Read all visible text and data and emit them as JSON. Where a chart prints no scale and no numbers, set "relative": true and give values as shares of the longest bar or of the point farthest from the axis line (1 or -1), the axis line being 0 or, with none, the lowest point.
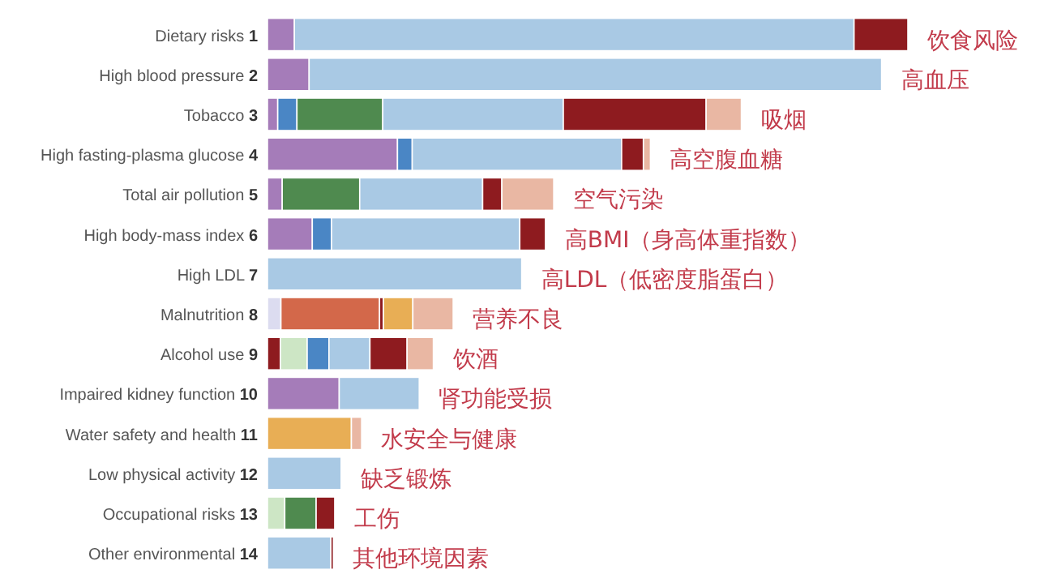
{
  "chart_data": {
    "type": "bar",
    "orientation": "horizontal",
    "stacked": true,
    "relative": true,
    "categories": [
      "Dietary risks 1",
      "High blood pressure 2",
      "Tobacco 3",
      "High fasting-plasma glucose 4",
      "Total air pollution 5",
      "High body-mass index 6",
      "High LDL 7",
      "Malnutrition 8",
      "Alcohol use 9",
      "Impaired kidney function 10",
      "Water safety and health 11",
      "Low physical activity 12",
      "Occupational risks 13",
      "Other environmental 14"
    ],
    "series": [
      {
        "values": [
          0.042,
          0.065,
          0.016,
          0.203,
          0.023,
          0.07,
          0.397,
          0.021,
          0.02,
          0.112,
          0.131,
          0.115,
          0.027,
          0.099
        ],
        "colors": [
          "#a57cb9",
          "#a57cb9",
          "#a57cb9",
          "#a57cb9",
          "#a57cb9",
          "#a57cb9",
          "#a9c9e4",
          "#dcdcf0",
          "#8e1b1f",
          "#a57cb9",
          "#e8ae55",
          "#a9c9e4",
          "#cde6c5",
          "#a9c9e4"
        ]
      },
      {
        "values": [
          0.874,
          0.894,
          0.03,
          0.023,
          0.121,
          0.03,
          null,
          0.154,
          0.042,
          0.125,
          0.016,
          null,
          0.049,
          0.004
        ],
        "colors": [
          "#a9c9e4",
          "#a9c9e4",
          "#4a86c5",
          "#4a86c5",
          "#4f8a4f",
          "#4a86c5",
          null,
          "#d3684a",
          "#cde6c5",
          "#a9c9e4",
          "#e9b7a3",
          null,
          "#4f8a4f",
          "#8e1b1f"
        ]
      },
      {
        "values": [
          0.084,
          null,
          0.134,
          0.327,
          0.192,
          0.294,
          null,
          0.006,
          0.034,
          null,
          null,
          null,
          0.029,
          null
        ],
        "colors": [
          "#8e1b1f",
          null,
          "#4f8a4f",
          "#a9c9e4",
          "#a9c9e4",
          "#a9c9e4",
          null,
          "#8e1b1f",
          "#4a86c5",
          null,
          null,
          null,
          "#8e1b1f",
          null
        ]
      },
      {
        "values": [
          null,
          null,
          0.282,
          0.034,
          0.03,
          0.04,
          null,
          0.046,
          0.064,
          null,
          null,
          null,
          null,
          null
        ],
        "colors": [
          null,
          null,
          "#a9c9e4",
          "#8e1b1f",
          "#8e1b1f",
          "#8e1b1f",
          null,
          "#e8ae55",
          "#a9c9e4",
          null,
          null,
          null,
          null,
          null
        ]
      },
      {
        "values": [
          null,
          null,
          0.223,
          0.011,
          0.081,
          null,
          null,
          0.063,
          0.058,
          null,
          null,
          null,
          null,
          null
        ],
        "colors": [
          null,
          null,
          "#8e1b1f",
          "#e9b7a3",
          "#e9b7a3",
          null,
          null,
          "#e9b7a3",
          "#8e1b1f",
          null,
          null,
          null,
          null,
          null
        ]
      },
      {
        "values": [
          null,
          null,
          0.055,
          null,
          null,
          null,
          null,
          null,
          0.041,
          null,
          null,
          null,
          null,
          null
        ],
        "colors": [
          null,
          null,
          "#e9b7a3",
          null,
          null,
          null,
          null,
          null,
          "#e9b7a3",
          null,
          null,
          null,
          null,
          null
        ]
      }
    ],
    "annotations": [
      {
        "text": "饮食风险",
        "x": 1.0,
        "y": "Dietary risks 1"
      },
      {
        "text": "高血压",
        "x": 0.959,
        "y": "High blood pressure 2"
      },
      {
        "text": "吸烟",
        "x": 0.74,
        "y": "Tobacco 3"
      },
      {
        "text": "高空腹血糖",
        "x": 0.598,
        "y": "High fasting-plasma glucose 4"
      },
      {
        "text": "空气污染",
        "x": 0.447,
        "y": "Total air pollution 5"
      },
      {
        "text": "高BMI（身高体重指数）",
        "x": 0.434,
        "y": "High body-mass index 6"
      },
      {
        "text": "高LDL（低密度脂蛋白）",
        "x": 0.397,
        "y": "High LDL 7"
      },
      {
        "text": "营养不良",
        "x": 0.29,
        "y": "Malnutrition 8"
      },
      {
        "text": "饮酒",
        "x": 0.259,
        "y": "Alcohol use 9"
      },
      {
        "text": "肾功能受损",
        "x": 0.237,
        "y": "Impaired kidney function 10"
      },
      {
        "text": "水安全与健康",
        "x": 0.147,
        "y": "Water safety and health 11"
      },
      {
        "text": "缺乏锻炼",
        "x": 0.115,
        "y": "Low physical activity 12"
      },
      {
        "text": "工伤",
        "x": 0.105,
        "y": "Occupational risks 13"
      },
      {
        "text": "其他环境因素",
        "x": 0.103,
        "y": "Other environmental 14"
      }
    ]
  }
}
